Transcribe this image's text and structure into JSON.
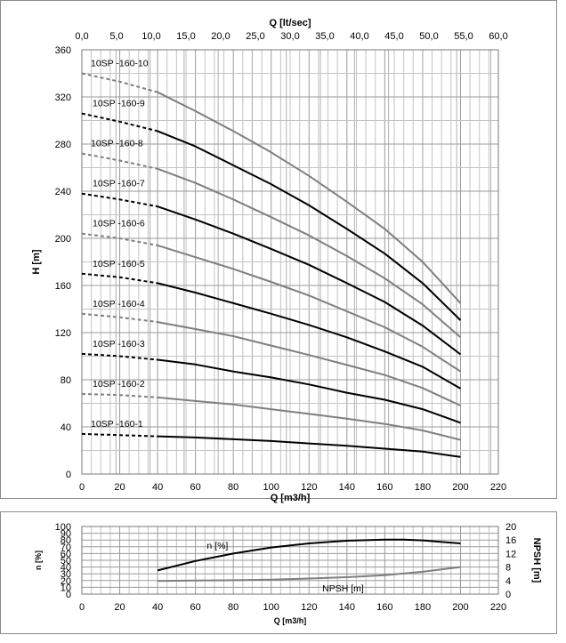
{
  "chart_data": [
    {
      "type": "line",
      "top_axis": {
        "label": "Q [lt/sec]",
        "ticks": [
          "0,0",
          "5,0",
          "10,0",
          "15,0",
          "20,0",
          "25,0",
          "30,0",
          "35,0",
          "40,0",
          "45,0",
          "50,0",
          "55,0",
          "60,0"
        ]
      },
      "xlabel": "Q [m3/h]",
      "ylabel": "H [m]",
      "xlim": [
        0,
        220
      ],
      "ylim": [
        0,
        360
      ],
      "xticks": [
        "0",
        "20",
        "40",
        "60",
        "80",
        "100",
        "120",
        "140",
        "160",
        "180",
        "200",
        "220"
      ],
      "yticks": [
        "0",
        "40",
        "80",
        "120",
        "160",
        "200",
        "240",
        "280",
        "320",
        "360"
      ],
      "grid": true,
      "series": [
        {
          "name": "10SP -160-1",
          "color": "#000000",
          "dashed_until": 40,
          "points": [
            [
              0,
              34
            ],
            [
              40,
              32
            ],
            [
              60,
              31
            ],
            [
              80,
              29.5
            ],
            [
              100,
              28
            ],
            [
              120,
              26
            ],
            [
              140,
              24
            ],
            [
              160,
              21.5
            ],
            [
              180,
              19
            ],
            [
              200,
              14.5
            ]
          ]
        },
        {
          "name": "10SP -160-2",
          "color": "#7f7f7f",
          "dashed_until": 40,
          "points": [
            [
              0,
              68
            ],
            [
              20,
              67
            ],
            [
              40,
              65
            ],
            [
              60,
              62
            ],
            [
              80,
              59
            ],
            [
              100,
              55
            ],
            [
              120,
              51
            ],
            [
              140,
              47
            ],
            [
              160,
              42.5
            ],
            [
              180,
              37
            ],
            [
              200,
              29
            ]
          ]
        },
        {
          "name": "10SP -160-3",
          "color": "#000000",
          "dashed_until": 40,
          "points": [
            [
              0,
              102
            ],
            [
              20,
              100
            ],
            [
              40,
              97
            ],
            [
              60,
              93
            ],
            [
              80,
              87
            ],
            [
              100,
              82
            ],
            [
              120,
              76
            ],
            [
              140,
              69
            ],
            [
              160,
              63
            ],
            [
              180,
              55
            ],
            [
              200,
              43.5
            ]
          ]
        },
        {
          "name": "10SP -160-4",
          "color": "#7f7f7f",
          "dashed_until": 40,
          "points": [
            [
              0,
              136
            ],
            [
              20,
              133
            ],
            [
              40,
              129
            ],
            [
              60,
              123
            ],
            [
              80,
              117
            ],
            [
              100,
              109
            ],
            [
              120,
              101
            ],
            [
              140,
              92.5
            ],
            [
              160,
              84
            ],
            [
              180,
              73
            ],
            [
              200,
              58
            ]
          ]
        },
        {
          "name": "10SP -160-5",
          "color": "#000000",
          "dashed_until": 40,
          "points": [
            [
              0,
              170
            ],
            [
              20,
              167
            ],
            [
              40,
              162
            ],
            [
              60,
              154
            ],
            [
              80,
              145
            ],
            [
              100,
              136
            ],
            [
              120,
              126.5
            ],
            [
              140,
              116
            ],
            [
              160,
              104
            ],
            [
              180,
              91
            ],
            [
              200,
              72.5
            ]
          ]
        },
        {
          "name": "10SP -160-6",
          "color": "#7f7f7f",
          "dashed_until": 40,
          "points": [
            [
              0,
              204
            ],
            [
              20,
              200
            ],
            [
              40,
              194
            ],
            [
              60,
              184
            ],
            [
              80,
              174
            ],
            [
              100,
              163
            ],
            [
              120,
              151.5
            ],
            [
              140,
              138
            ],
            [
              160,
              124.5
            ],
            [
              180,
              108
            ],
            [
              200,
              87
            ]
          ]
        },
        {
          "name": "10SP -160-7",
          "color": "#000000",
          "dashed_until": 40,
          "points": [
            [
              0,
              238
            ],
            [
              20,
              233
            ],
            [
              40,
              227
            ],
            [
              60,
              216
            ],
            [
              80,
              204
            ],
            [
              100,
              191
            ],
            [
              120,
              177.5
            ],
            [
              140,
              162
            ],
            [
              160,
              146
            ],
            [
              180,
              126
            ],
            [
              200,
              101.5
            ]
          ]
        },
        {
          "name": "10SP -160-8",
          "color": "#7f7f7f",
          "dashed_until": 40,
          "points": [
            [
              0,
              272
            ],
            [
              20,
              266
            ],
            [
              40,
              259
            ],
            [
              60,
              247
            ],
            [
              80,
              233
            ],
            [
              100,
              218
            ],
            [
              120,
              202.5
            ],
            [
              140,
              185
            ],
            [
              160,
              166
            ],
            [
              180,
              144
            ],
            [
              200,
              116
            ]
          ]
        },
        {
          "name": "10SP -160-9",
          "color": "#000000",
          "dashed_until": 40,
          "points": [
            [
              0,
              306
            ],
            [
              20,
              299
            ],
            [
              40,
              291
            ],
            [
              60,
              278
            ],
            [
              80,
              262
            ],
            [
              100,
              246
            ],
            [
              120,
              228
            ],
            [
              140,
              208
            ],
            [
              160,
              187
            ],
            [
              180,
              162
            ],
            [
              200,
              130.5
            ]
          ]
        },
        {
          "name": "10SP -160-10",
          "color": "#7f7f7f",
          "dashed_until": 40,
          "points": [
            [
              0,
              340
            ],
            [
              20,
              333
            ],
            [
              40,
              324
            ],
            [
              60,
              308
            ],
            [
              80,
              291
            ],
            [
              100,
              273
            ],
            [
              120,
              253
            ],
            [
              140,
              231
            ],
            [
              160,
              208
            ],
            [
              180,
              180
            ],
            [
              200,
              145
            ]
          ]
        }
      ]
    },
    {
      "type": "line",
      "xlabel": "Q [m3/h]",
      "ylabel": "n [%]",
      "ylabel_right": "NPSH [m]",
      "xlim": [
        0,
        220
      ],
      "ylim": [
        0,
        100
      ],
      "ylim_right": [
        0,
        20
      ],
      "xticks": [
        "0",
        "20",
        "40",
        "60",
        "80",
        "100",
        "120",
        "140",
        "160",
        "180",
        "200",
        "220"
      ],
      "yticks": [
        "0",
        "10",
        "20",
        "30",
        "40",
        "50",
        "60",
        "70",
        "80",
        "90",
        "100"
      ],
      "yticks_right": [
        "0",
        "4",
        "8",
        "12",
        "16",
        "20"
      ],
      "grid": true,
      "series": [
        {
          "name": "n [%]",
          "axis": "left",
          "color": "#000000",
          "points": [
            [
              40,
              35
            ],
            [
              60,
              49
            ],
            [
              80,
              60
            ],
            [
              100,
              69
            ],
            [
              120,
              75
            ],
            [
              140,
              79
            ],
            [
              160,
              80.5
            ],
            [
              170,
              80.5
            ],
            [
              180,
              79.5
            ],
            [
              200,
              75
            ]
          ]
        },
        {
          "name": "NPSH [m]",
          "axis": "right",
          "color": "#7f7f7f",
          "points": [
            [
              40,
              3.9
            ],
            [
              60,
              4
            ],
            [
              80,
              4.1
            ],
            [
              100,
              4.3
            ],
            [
              120,
              4.6
            ],
            [
              140,
              5
            ],
            [
              160,
              5.6
            ],
            [
              180,
              6.6
            ],
            [
              200,
              8
            ]
          ]
        }
      ]
    }
  ]
}
